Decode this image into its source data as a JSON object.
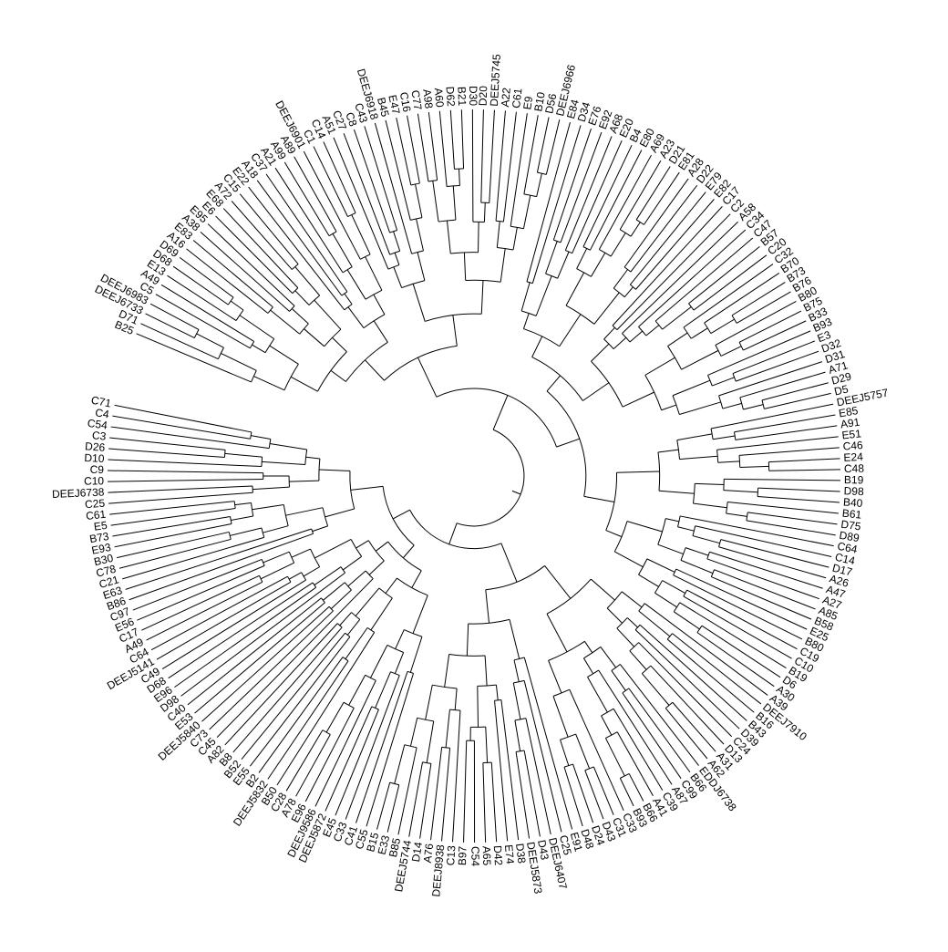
{
  "tree": {
    "line_color": "#000000",
    "background": "#ffffff",
    "leaves": [
      "B25",
      "D71",
      "DEEJ6733",
      "DEEJ6983",
      "C5",
      "A49",
      "E13",
      "D68",
      "D69",
      "A16",
      "E83",
      "A38",
      "E95",
      "E6",
      "E68",
      "A72",
      "C15",
      "E22",
      "A18",
      "C37",
      "A21",
      "A99",
      "A89",
      "DEEJ6901",
      "C1",
      "C14",
      "A51",
      "C27",
      "C8",
      "C43",
      "DEEJ6918",
      "B45",
      "E47",
      "C16",
      "C77",
      "A98",
      "A60",
      "D62",
      "B21",
      "D30",
      "D20",
      "DEEJ5745",
      "A22",
      "C61",
      "E9",
      "B10",
      "D56",
      "DEEJ6966",
      "E84",
      "D34",
      "E76",
      "E92",
      "A68",
      "E20",
      "B4",
      "E80",
      "A69",
      "A23",
      "D21",
      "E81",
      "A28",
      "D22",
      "E79",
      "E82",
      "C17",
      "C2",
      "A58",
      "C34",
      "C47",
      "B57",
      "C20",
      "C32",
      "B70",
      "B73",
      "B76",
      "B80",
      "B75",
      "B33",
      "B93",
      "E3",
      "D32",
      "D31",
      "A71",
      "D29",
      "D5",
      "DEEJ5757",
      "E85",
      "A91",
      "E51",
      "C46",
      "E24",
      "C48",
      "B19",
      "D98",
      "B40",
      "B61",
      "D75",
      "D89",
      "C64",
      "C14",
      "D17",
      "A26",
      "A47",
      "A27",
      "A85",
      "B58",
      "E25",
      "B80",
      "C19",
      "C10",
      "B19",
      "D6",
      "A30",
      "A39",
      "DEEJ7910",
      "B16",
      "B43",
      "D39",
      "C24",
      "D13",
      "A31",
      "A62",
      "EDDJ6738",
      "B66",
      "C99",
      "A87",
      "C39",
      "A41",
      "B66",
      "B93",
      "C33",
      "C31",
      "D43",
      "D24",
      "D48",
      "E91",
      "C25",
      "DEEJ6407",
      "D43",
      "DEEJ5873",
      "D38",
      "E74",
      "D42",
      "A65",
      "C54",
      "B97",
      "C13",
      "DEEJ8938",
      "A76",
      "D14",
      "DEEJ5744",
      "B85",
      "E33",
      "B15",
      "C55",
      "C41",
      "C33",
      "E45",
      "DEEJ5872",
      "DEEJ9586",
      "E96",
      "A78",
      "C28",
      "B50",
      "DEEJ5832",
      "B2",
      "E55",
      "B52",
      "B8",
      "A82",
      "C45",
      "C73",
      "DEEJ5840",
      "E53",
      "C40",
      "D98",
      "E96",
      "D68",
      "C49",
      "DEEJ5141",
      "C64",
      "A49",
      "C17",
      "E56",
      "C97",
      "B86",
      "E63",
      "C21",
      "C78",
      "B30",
      "E93",
      "B73",
      "E5",
      "C61",
      "C25",
      "DEEJ6738",
      "C10",
      "C9",
      "D10",
      "D26",
      "C3",
      "C54",
      "C4",
      "C71"
    ]
  }
}
